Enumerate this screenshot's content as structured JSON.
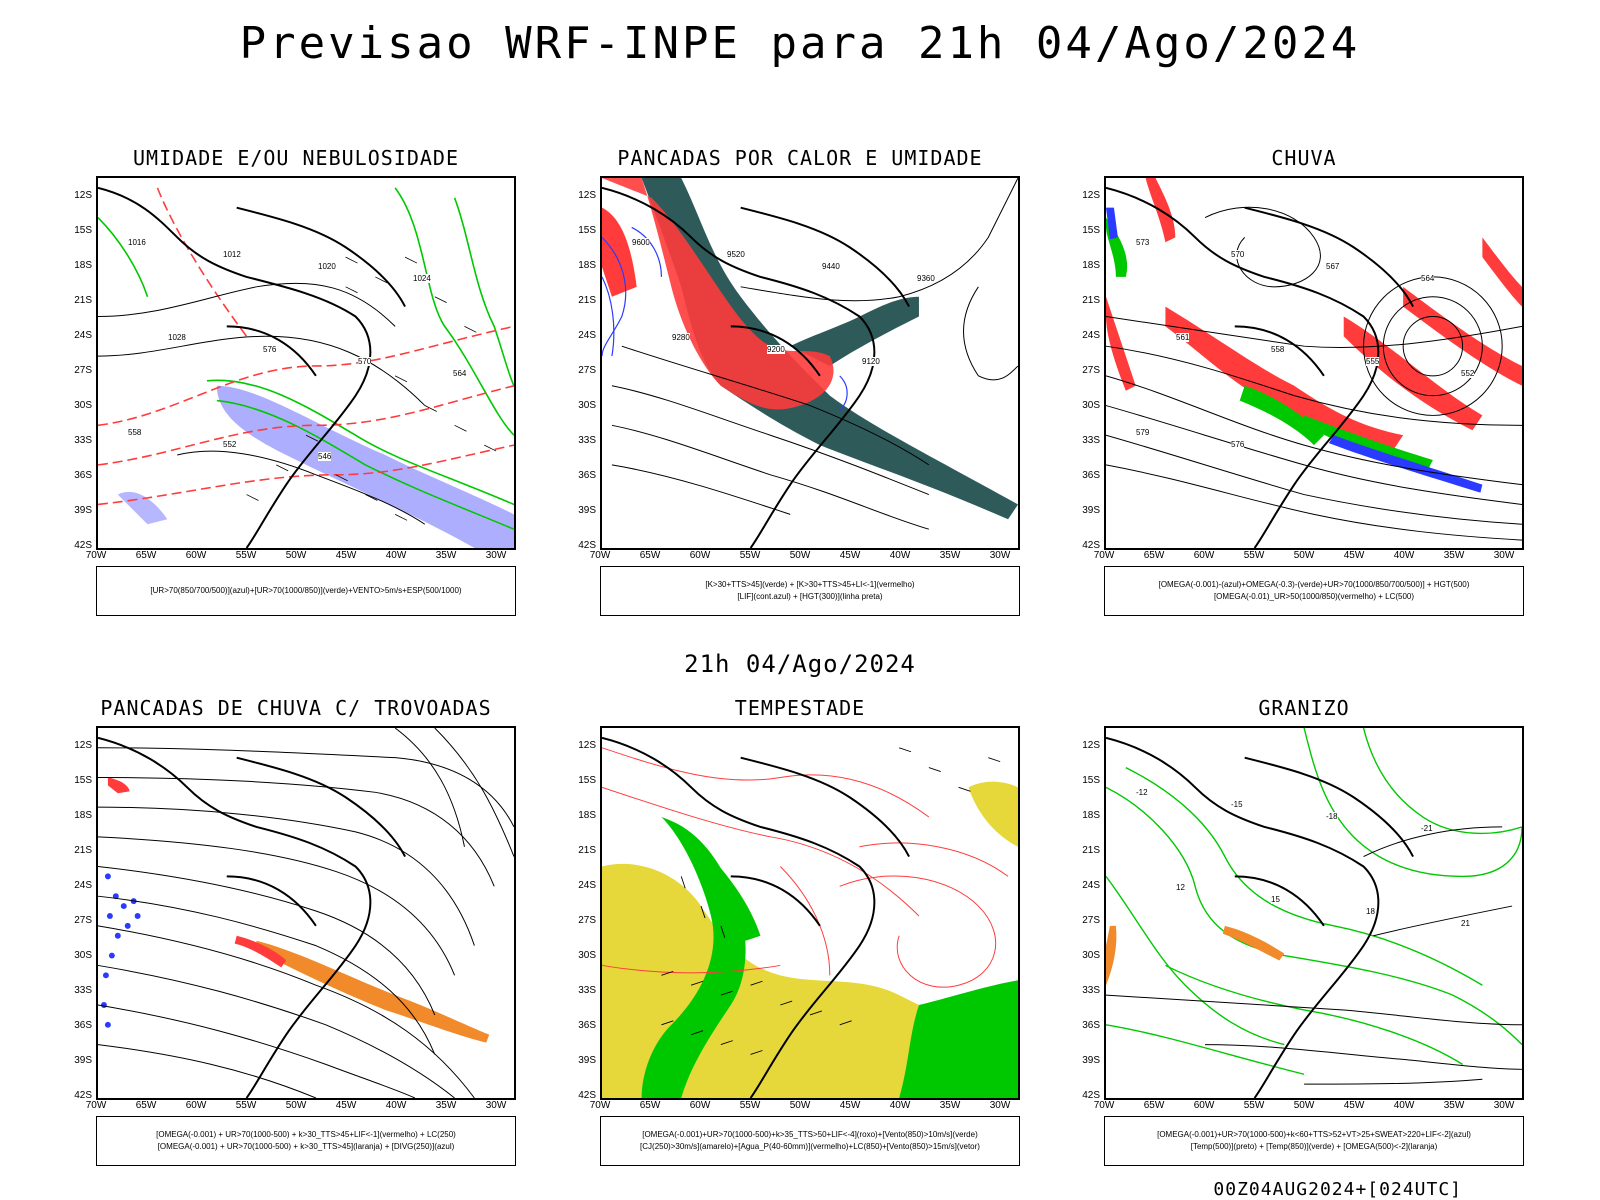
{
  "header": {
    "title": "Previsao WRF-INPE  para 21h 04/Ago/2024",
    "subtitle": "21h 04/Ago/2024",
    "run_label": "00Z04AUG2024+[024UTC]"
  },
  "axes": {
    "lat_labels": [
      "12S",
      "15S",
      "18S",
      "21S",
      "24S",
      "27S",
      "30S",
      "33S",
      "36S",
      "39S",
      "42S"
    ],
    "lon_labels": [
      "70W",
      "65W",
      "60W",
      "55W",
      "50W",
      "45W",
      "40W",
      "35W",
      "30W"
    ]
  },
  "panels": [
    {
      "title": "UMIDADE E/OU NEBULOSIDADE",
      "legend": [
        "[UR>70(850/700/500)](azul)+[UR>70(1000/850)](verde)+VENTO>5m/s+ESP(500/1000)"
      ]
    },
    {
      "title": "PANCADAS POR CALOR E UMIDADE",
      "legend": [
        "[K>30+TTS>45](verde) + [K>30+TTS>45+LI<-1](vermelho)",
        "[LIF](cont.azul) + [HGT(300)](linha preta)"
      ]
    },
    {
      "title": "CHUVA",
      "legend": [
        "[OMEGA(-0.001)-(azul)+OMEGA(-0.3)-(verde)+UR>70(1000/850/700/500)] + HGT(500)",
        "[OMEGA(-0.01)_UR>50(1000/850)(vermelho) + LC(500)"
      ]
    },
    {
      "title": "PANCADAS DE CHUVA C/ TROVOADAS",
      "legend": [
        "[OMEGA(-0.001) + UR>70(1000-500) + k>30_TTS>45+LIF<-1](vermelho) + LC(250)",
        "[OMEGA(-0.001) + UR>70(1000-500) + k>30_TTS>45](laranja) + [DIVG(250)](azul)"
      ]
    },
    {
      "title": "TEMPESTADE",
      "legend": [
        "[OMEGA(-0.001)+UR>70(1000-500)+k>35_TTS>50+LIF<-4](roxo)+[Vento(850)>10m/s](verde)",
        "[CJ(250)>30m/s](amarelo)+[Agua_P(40-60mm)](vermelho)+LC(850)+[Vento(850)>15m/s](vetor)"
      ]
    },
    {
      "title": "GRANIZO",
      "legend": [
        "[OMEGA(-0.001)+UR>70(1000-500)+k<60+TTS>52+VT>25+SWEAT>220+LIF<-2](azul)",
        "[Temp(500)](preto) + [Temp(850)](verde) + [OMEGA(500)<-2](laranja)"
      ]
    }
  ],
  "map_annotations": {
    "p1": [
      "1016",
      "1012",
      "1020",
      "1024",
      "1028",
      "576",
      "570",
      "564",
      "558",
      "552",
      "546"
    ],
    "p2": [
      "9600",
      "9520",
      "9440",
      "9360",
      "9280",
      "9200",
      "9120"
    ],
    "p3": [
      "573",
      "570",
      "567",
      "564",
      "561",
      "558",
      "555",
      "552",
      "579",
      "576"
    ],
    "p6": [
      "-12",
      "-15",
      "-18",
      "-21",
      "12",
      "15",
      "18",
      "21"
    ]
  },
  "colors": {
    "coast": "#000000",
    "red": "#ff3b3b",
    "green": "#00c800",
    "blue": "#2a3aff",
    "lilac": "#9a9aff",
    "teal": "#2f5a5a",
    "yellow": "#e6d83a",
    "orange": "#f08a2a"
  }
}
